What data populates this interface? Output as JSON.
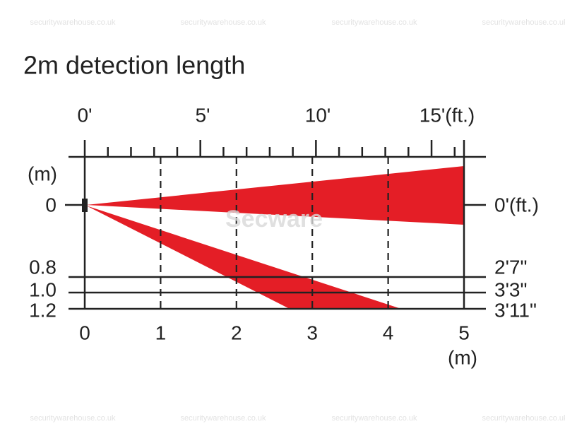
{
  "title": "2m detection length",
  "top_axis": {
    "labels": [
      "0'",
      "5'",
      "10'",
      "15'(ft.)"
    ]
  },
  "left_axis": {
    "unit": "(m)",
    "labels": [
      "0",
      "0.8",
      "1.0",
      "1.2"
    ]
  },
  "right_axis": {
    "labels": [
      "0'(ft.)",
      "2'7\"",
      "3'3\"",
      "3'11\""
    ]
  },
  "bottom_axis": {
    "labels": [
      "0",
      "1",
      "2",
      "3",
      "4",
      "5"
    ],
    "unit": "(m)"
  },
  "watermarks": {
    "site": "securitywarehouse.co.uk",
    "brand": "Secware"
  }
}
